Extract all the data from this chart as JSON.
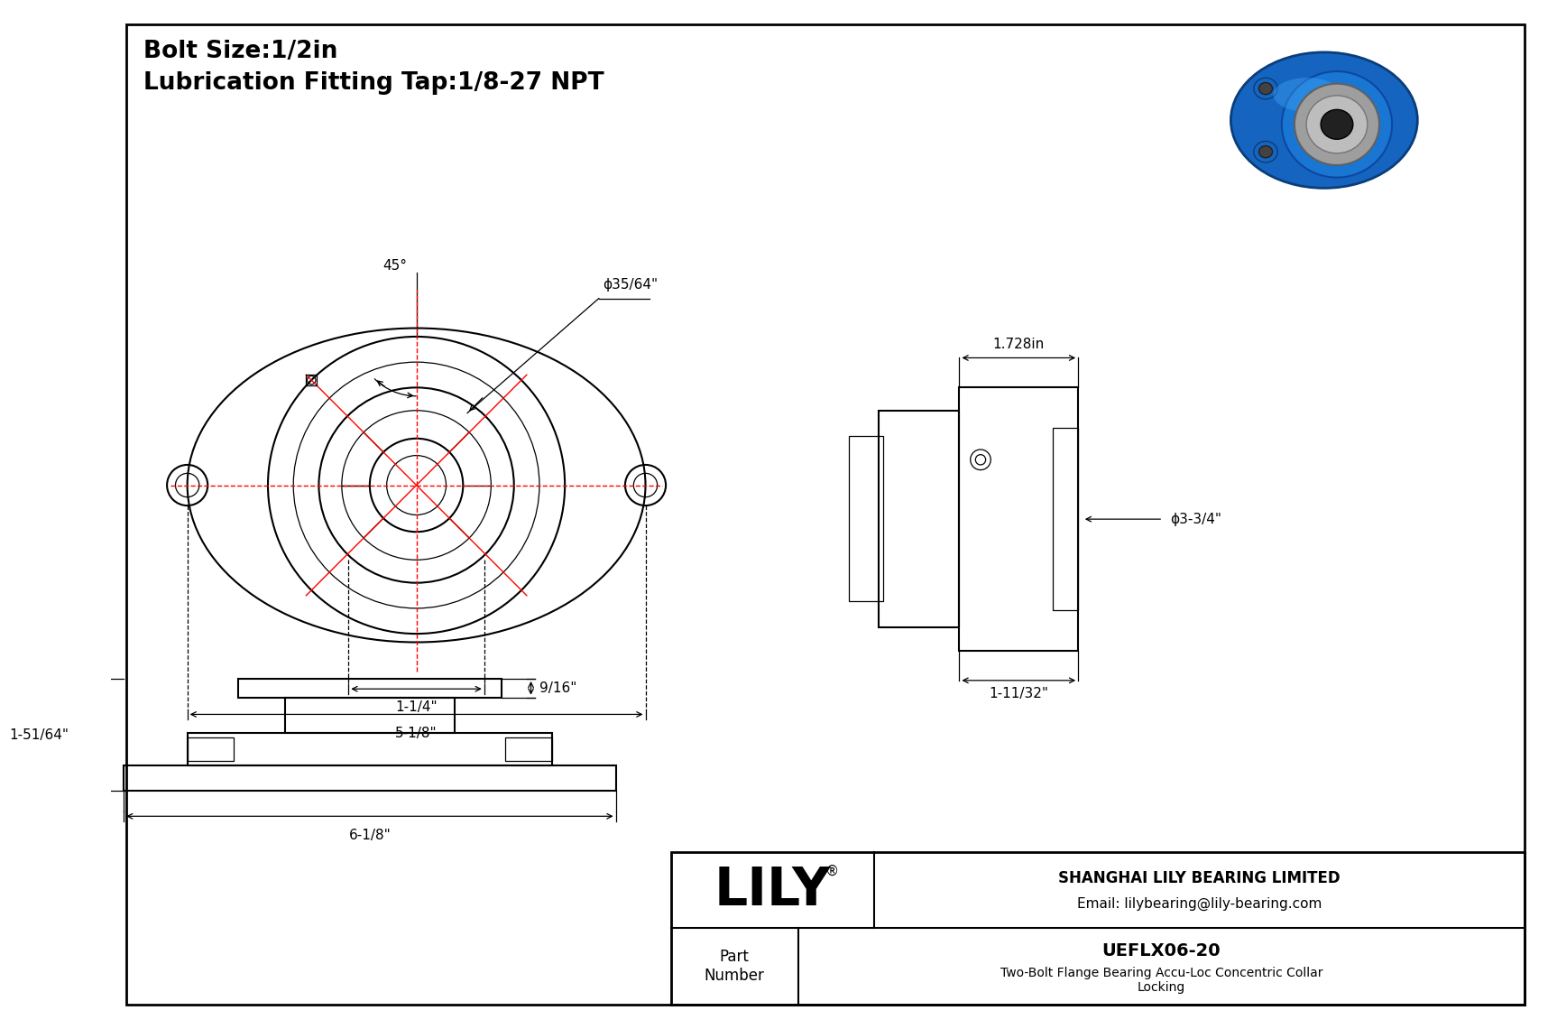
{
  "bg_color": "#ffffff",
  "line_color": "#000000",
  "red_color": "#ff0000",
  "title_line1": "Bolt Size:1/2in",
  "title_line2": "Lubrication Fitting Tap:1/8-27 NPT",
  "company": "SHANGHAI LILY BEARING LIMITED",
  "email": "Email: lilybearing@lily-bearing.com",
  "part_label": "Part\nNumber",
  "part_number": "UEFLX06-20",
  "part_desc": "Two-Bolt Flange Bearing Accu-Loc Concentric Collar\nLocking",
  "lily_text": "LILY",
  "dim_bore": "ϕ35/64\"",
  "dim_45": "45°",
  "dim_1_4": "1-1/4\"",
  "dim_5_8": "5-1/8\"",
  "dim_1728": "1.728in",
  "dim_3_34": "ϕ3-3/4\"",
  "dim_1_1132": "1-11/32\"",
  "dim_9_16": "9/16\"",
  "dim_1_5164": "1-51/64\"",
  "dim_6_18": "6-1/8\""
}
